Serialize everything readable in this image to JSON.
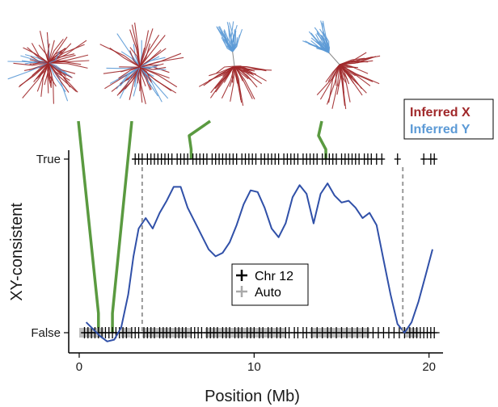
{
  "chart_data": {
    "type": "scatter",
    "xlabel": "Position (Mb)",
    "ylabel": "XY-consistent",
    "xlim": [
      -0.6,
      20.8
    ],
    "x_ticks": [
      0,
      10,
      20
    ],
    "y_ticks": [
      "False",
      "True"
    ],
    "series": [
      {
        "name": "Chr 12",
        "color": "#000000",
        "marker": "plus",
        "true_positions": [
          3.2,
          3.4,
          3.6,
          3.9,
          4.1,
          4.3,
          4.5,
          4.7,
          4.9,
          5.1,
          5.3,
          5.6,
          5.8,
          6.0,
          6.2,
          6.5,
          6.7,
          6.9,
          7.1,
          7.3,
          7.6,
          7.8,
          8.0,
          8.2,
          8.4,
          8.6,
          8.8,
          9.0,
          9.3,
          9.5,
          9.7,
          9.9,
          10.1,
          10.4,
          10.6,
          10.8,
          11.0,
          11.2,
          11.4,
          11.7,
          11.9,
          12.1,
          12.3,
          12.5,
          12.8,
          13.0,
          13.2,
          13.4,
          13.6,
          13.9,
          14.1,
          14.3,
          14.5,
          14.7,
          15.0,
          15.2,
          15.4,
          15.6,
          15.8,
          16.0,
          16.3,
          16.5,
          16.7,
          17.0,
          17.3,
          18.2,
          19.7,
          20.1,
          20.3
        ],
        "false_positions": [
          0.3,
          0.5,
          0.7,
          0.9,
          1.1,
          1.3,
          1.5,
          1.7,
          1.9,
          2.1,
          2.3,
          2.5,
          2.7,
          3.0,
          3.2,
          3.4,
          3.7,
          3.9,
          4.1,
          4.3,
          4.6,
          4.8,
          5.0,
          5.2,
          5.5,
          5.7,
          5.9,
          6.1,
          6.4,
          6.6,
          6.8,
          7.0,
          7.3,
          7.5,
          7.7,
          7.9,
          8.2,
          8.4,
          8.6,
          8.9,
          9.1,
          9.3,
          9.6,
          9.8,
          10.0,
          10.3,
          10.5,
          10.8,
          11.0,
          11.3,
          11.5,
          11.8,
          12.0,
          12.3,
          12.5,
          12.8,
          13.0,
          13.3,
          13.6,
          13.9,
          14.2,
          14.4,
          14.7,
          15.0,
          15.3,
          15.6,
          15.9,
          16.2,
          16.5,
          16.8,
          17.1,
          17.4,
          17.7,
          18.0,
          18.3,
          18.6,
          18.9,
          19.1,
          19.3,
          19.5,
          19.7,
          19.9,
          20.1,
          20.3
        ]
      },
      {
        "name": "Auto",
        "color": "#aaaaaa",
        "marker": "plus",
        "false_band": [
          [
            0.0,
            1.4
          ],
          [
            2.4,
            3.0
          ],
          [
            3.6,
            6.4
          ],
          [
            7.2,
            11.8
          ],
          [
            13.2,
            16.6
          ],
          [
            18.6,
            19.4
          ]
        ]
      }
    ],
    "smooth_line": {
      "color": "#3050a8",
      "x": [
        0.4,
        0.8,
        1.2,
        1.6,
        2.0,
        2.4,
        2.8,
        3.1,
        3.4,
        3.8,
        4.2,
        4.6,
        5.0,
        5.4,
        5.8,
        6.2,
        6.6,
        7.0,
        7.4,
        7.8,
        8.2,
        8.6,
        9.0,
        9.4,
        9.8,
        10.2,
        10.6,
        11.0,
        11.4,
        11.8,
        12.2,
        12.6,
        13.0,
        13.4,
        13.8,
        14.2,
        14.6,
        15.0,
        15.4,
        15.8,
        16.2,
        16.6,
        17.0,
        17.4,
        17.8,
        18.2,
        18.6,
        19.0,
        19.4,
        19.8,
        20.2
      ],
      "y": [
        0.06,
        0.02,
        -0.02,
        -0.05,
        -0.04,
        0.03,
        0.22,
        0.44,
        0.6,
        0.66,
        0.6,
        0.69,
        0.76,
        0.84,
        0.84,
        0.72,
        0.64,
        0.56,
        0.48,
        0.44,
        0.46,
        0.52,
        0.62,
        0.74,
        0.82,
        0.81,
        0.72,
        0.6,
        0.55,
        0.63,
        0.78,
        0.85,
        0.8,
        0.63,
        0.8,
        0.86,
        0.79,
        0.75,
        0.76,
        0.72,
        0.66,
        0.69,
        0.62,
        0.42,
        0.22,
        0.05,
        0.0,
        0.06,
        0.18,
        0.33,
        0.48
      ]
    },
    "boundaries": [
      3.6,
      18.5
    ],
    "legend": {
      "placement": "center",
      "entries": [
        "Chr 12",
        "Auto"
      ]
    }
  },
  "trees": {
    "legend": [
      {
        "label": "Inferred X",
        "color": "#a0282a"
      },
      {
        "label": "Inferred Y",
        "color": "#5c9ad6"
      }
    ],
    "links": [
      {
        "tree": 1,
        "x": 1.1
      },
      {
        "tree": 1,
        "x": 1.9
      },
      {
        "tree": 3,
        "x": 6.4
      },
      {
        "tree": 4,
        "x": 14.1
      }
    ],
    "link_color": "#5a9a40"
  },
  "colors": {
    "axis": "#000000",
    "boundary": "#999999"
  }
}
